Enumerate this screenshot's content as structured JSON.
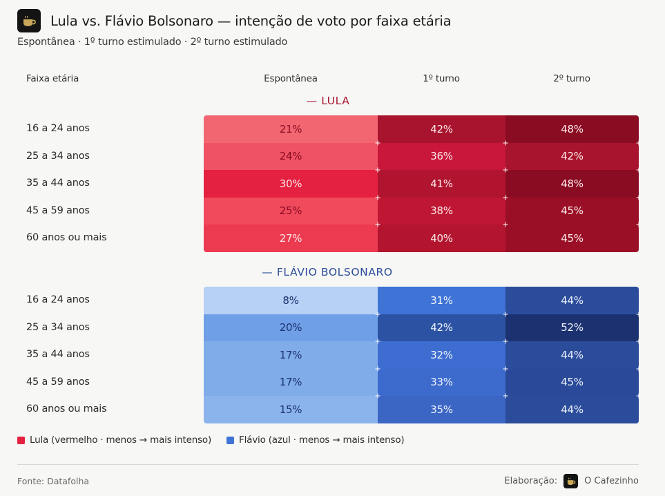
{
  "header": {
    "logo_icon": "coffee-cup-icon",
    "title": "Lula vs. Flávio Bolsonaro — intenção de voto por faixa etária",
    "subtitle": "Espontânea · 1º turno estimulado · 2º turno estimulado"
  },
  "columns": {
    "label": "Faixa etária",
    "c1": "Espontânea",
    "c2": "1º turno",
    "c3": "2º turno"
  },
  "chart_data": {
    "type": "heatmap",
    "title": "Lula vs. Flávio Bolsonaro — intenção de voto por faixa etária",
    "subtitle": "Espontânea · 1º turno estimulado · 2º turno estimulado",
    "row_header": "Faixa etária",
    "columns": [
      "Espontânea",
      "1º turno",
      "2º turno"
    ],
    "unit": "%",
    "groups": [
      {
        "name": "— LULA",
        "candidate": "Lula",
        "color": "#c8173a",
        "rows": [
          {
            "label": "16 a 24 anos",
            "values": [
              21,
              42,
              48
            ]
          },
          {
            "label": "25 a 34 anos",
            "values": [
              24,
              36,
              42
            ]
          },
          {
            "label": "35 a 44 anos",
            "values": [
              30,
              41,
              48
            ]
          },
          {
            "label": "45 a 59 anos",
            "values": [
              25,
              38,
              45
            ]
          },
          {
            "label": "60 anos ou mais",
            "values": [
              27,
              40,
              45
            ]
          }
        ]
      },
      {
        "name": "— FLÁVIO BOLSONARO",
        "candidate": "Flávio",
        "color": "#2b4fa0",
        "rows": [
          {
            "label": "16 a 24 anos",
            "values": [
              8,
              31,
              44
            ]
          },
          {
            "label": "25 a 34 anos",
            "values": [
              20,
              42,
              52
            ]
          },
          {
            "label": "35 a 44 anos",
            "values": [
              17,
              32,
              44
            ]
          },
          {
            "label": "45 a 59 anos",
            "values": [
              17,
              33,
              45
            ]
          },
          {
            "label": "60 anos ou mais",
            "values": [
              15,
              35,
              44
            ]
          }
        ]
      }
    ]
  },
  "cell_colors": {
    "lula": [
      [
        "#f26672",
        "#a8142d",
        "#8a0c22"
      ],
      [
        "#ef5264",
        "#c8173a",
        "#a8142d"
      ],
      [
        "#e42140",
        "#b0142e",
        "#8a0c22"
      ],
      [
        "#f04a5c",
        "#bf1733",
        "#9a0f26"
      ],
      [
        "#ec3a50",
        "#b3152f",
        "#9a0f26"
      ]
    ],
    "flavio": [
      [
        "#b7d0f5",
        "#3f73d6",
        "#2b4c9a"
      ],
      [
        "#6f9fe6",
        "#2c53a3",
        "#1c3170"
      ],
      [
        "#80ace9",
        "#3e6dd2",
        "#2b4c9a"
      ],
      [
        "#80ace9",
        "#3d6acd",
        "#2a4a99"
      ],
      [
        "#8cb4ec",
        "#3b66c4",
        "#2b4c9a"
      ]
    ],
    "lula_light_text": "#8a0c22",
    "flavio_dark_text": "#1c3170"
  },
  "legend": [
    {
      "label": "Lula (vermelho · menos → mais intenso)",
      "color": "#e42140"
    },
    {
      "label": "Flávio (azul · menos → mais intenso)",
      "color": "#3f73d6"
    }
  ],
  "footer": {
    "source": "Fonte: Datafolha",
    "credit_label": "Elaboração:",
    "credit_logo_icon": "coffee-cup-icon",
    "credit_name": "O Cafezinho"
  }
}
